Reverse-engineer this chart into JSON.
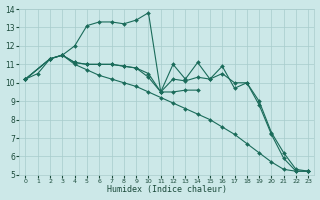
{
  "xlabel": "Humidex (Indice chaleur)",
  "bg_color": "#cce8e8",
  "line_color": "#1a6b5a",
  "grid_color": "#a8cccc",
  "xlim": [
    -0.5,
    23.5
  ],
  "ylim": [
    5,
    14
  ],
  "xticks": [
    0,
    1,
    2,
    3,
    4,
    5,
    6,
    7,
    8,
    9,
    10,
    11,
    12,
    13,
    14,
    15,
    16,
    17,
    18,
    19,
    20,
    21,
    22,
    23
  ],
  "yticks": [
    5,
    6,
    7,
    8,
    9,
    10,
    11,
    12,
    13,
    14
  ],
  "lines": [
    {
      "x": [
        0,
        1,
        2,
        3,
        4,
        5,
        6,
        7,
        8,
        9,
        10,
        11,
        12,
        13,
        14
      ],
      "y": [
        10.2,
        10.5,
        11.3,
        11.5,
        12.0,
        13.1,
        13.3,
        13.3,
        13.2,
        13.4,
        13.8,
        9.5,
        9.5,
        9.6,
        9.6
      ]
    },
    {
      "x": [
        0,
        2,
        3,
        4,
        5,
        6,
        7,
        8,
        9,
        10,
        11,
        12,
        13,
        14,
        15,
        16,
        17,
        18,
        19,
        20,
        21,
        22,
        23
      ],
      "y": [
        10.2,
        11.3,
        11.5,
        11.1,
        11.0,
        11.0,
        11.0,
        10.9,
        10.8,
        10.5,
        9.5,
        10.2,
        10.1,
        10.3,
        10.2,
        10.5,
        10.0,
        10.0,
        9.0,
        7.3,
        6.2,
        5.3,
        5.2
      ]
    },
    {
      "x": [
        0,
        2,
        3,
        4,
        5,
        6,
        7,
        8,
        9,
        10,
        11,
        12,
        13,
        14,
        15,
        16,
        17,
        18,
        19,
        20,
        21,
        22,
        23
      ],
      "y": [
        10.2,
        11.3,
        11.5,
        11.1,
        11.0,
        11.0,
        11.0,
        10.9,
        10.8,
        10.3,
        9.5,
        11.0,
        10.2,
        11.1,
        10.2,
        10.9,
        9.7,
        10.0,
        8.8,
        7.2,
        5.9,
        5.2,
        5.2
      ]
    },
    {
      "x": [
        0,
        2,
        3,
        4,
        5,
        6,
        7,
        8,
        9,
        10,
        11,
        12,
        13,
        14,
        15,
        16,
        17,
        18,
        19,
        20,
        21,
        22,
        23
      ],
      "y": [
        10.2,
        11.3,
        11.5,
        11.0,
        10.7,
        10.4,
        10.2,
        10.0,
        9.8,
        9.5,
        9.2,
        8.9,
        8.6,
        8.3,
        8.0,
        7.6,
        7.2,
        6.7,
        6.2,
        5.7,
        5.3,
        5.2,
        5.2
      ]
    }
  ]
}
